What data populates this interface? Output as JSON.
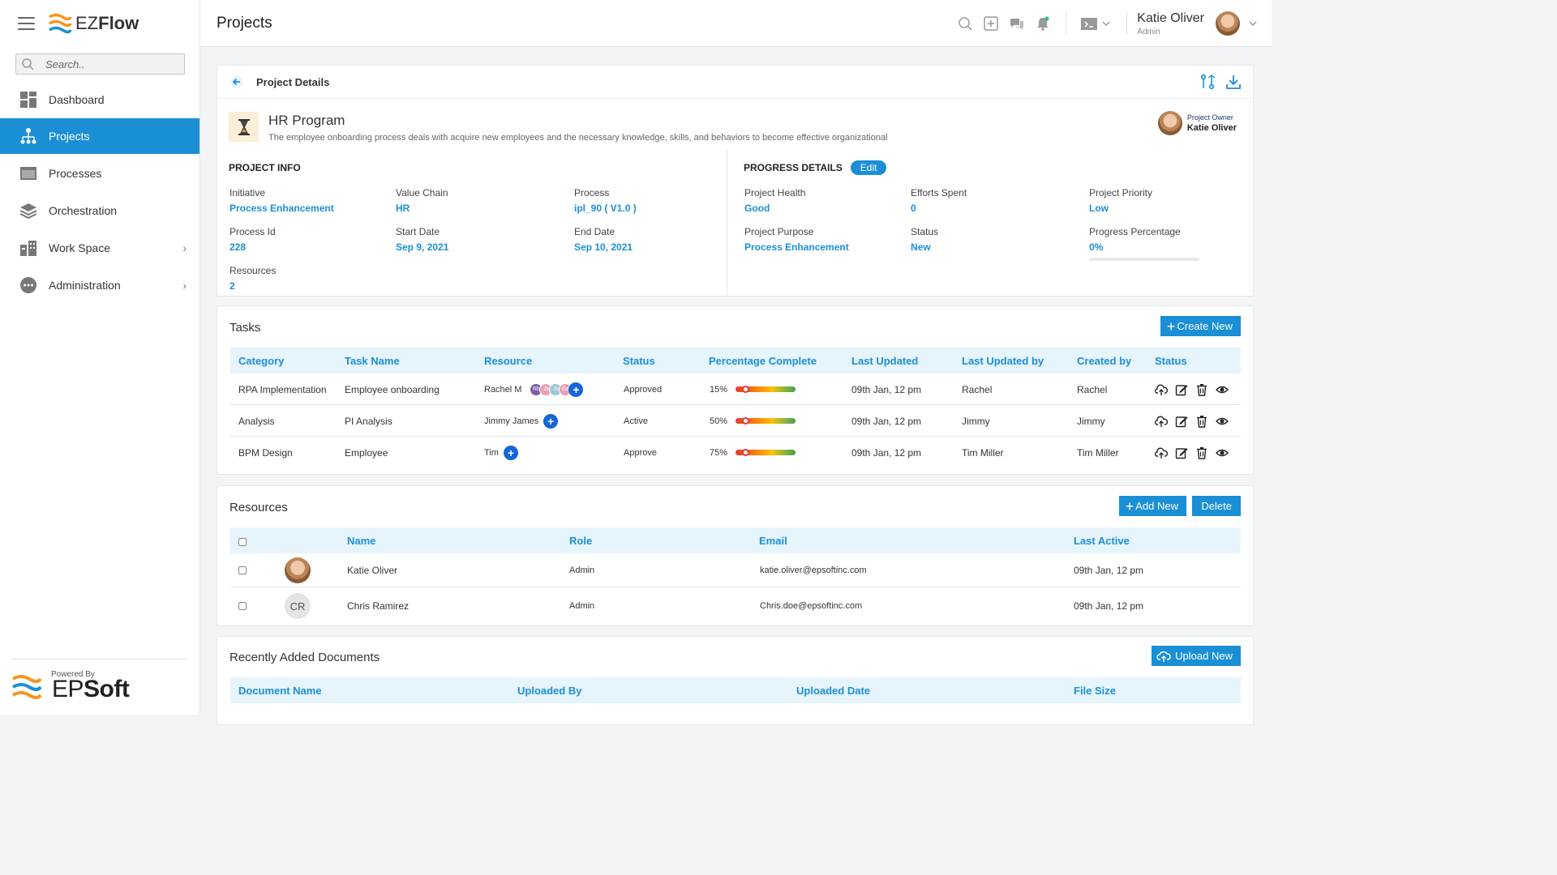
{
  "colors": {
    "accent": "#1a8fd6",
    "header_blue": "#1a8fd6",
    "table_head_bg": "#e6f4fc"
  },
  "sidebar": {
    "logo": {
      "prefix": "EZ",
      "suffix": "Flow"
    },
    "search_placeholder": "Search..",
    "items": [
      {
        "label": "Dashboard",
        "icon": "grid-icon"
      },
      {
        "label": "Projects",
        "icon": "org-chart-icon",
        "active": true
      },
      {
        "label": "Processes",
        "icon": "window-icon"
      },
      {
        "label": "Orchestration",
        "icon": "layers-icon"
      },
      {
        "label": "Work Space",
        "icon": "building-icon",
        "has_children": true
      },
      {
        "label": "Administration",
        "icon": "more-dots-icon",
        "has_children": true
      }
    ],
    "powered_by": {
      "label": "Powered By",
      "brand_prefix": "EP",
      "brand_suffix": "Soft"
    }
  },
  "header": {
    "title": "Projects",
    "user": {
      "name": "Katie Oliver",
      "role": "Admin"
    }
  },
  "project": {
    "breadcrumb": "Project Details",
    "title": "HR Program",
    "description": "The employee onboarding process deals with acquire new employees and the necessary knowledge, skills, and behaviors to become effective organizational",
    "owner": {
      "label": "Project Owner",
      "name": "Katie Oliver"
    },
    "info": {
      "title": "PROJECT INFO",
      "initiative": {
        "label": "Initiative",
        "value": "Process Enhancement"
      },
      "value_chain": {
        "label": "Value Chain",
        "value": "HR"
      },
      "process": {
        "label": "Process",
        "value": "ipl_90 ( V1.0 )"
      },
      "process_id": {
        "label": "Process Id",
        "value": "228"
      },
      "start_date": {
        "label": "Start Date",
        "value": "Sep 9, 2021"
      },
      "end_date": {
        "label": "End Date",
        "value": "Sep 10, 2021"
      },
      "resources": {
        "label": "Resources",
        "value": "2"
      }
    },
    "progress": {
      "title": "PROGRESS DETAILS",
      "edit_label": "Edit",
      "health": {
        "label": "Project Health",
        "value": "Good"
      },
      "efforts": {
        "label": "Efforts Spent",
        "value": "0"
      },
      "priority": {
        "label": "Project Priority",
        "value": "Low"
      },
      "purpose": {
        "label": "Project Purpose",
        "value": "Process Enhancement"
      },
      "status": {
        "label": "Status",
        "value": "New"
      },
      "percentage": {
        "label": "Progress Percentage",
        "value": "0%",
        "fraction": 0
      }
    }
  },
  "tasks": {
    "title": "Tasks",
    "create_label": "Create New",
    "columns": [
      "Category",
      "Task Name",
      "Resource",
      "Status",
      "Percentage Complete",
      "Last Updated",
      "Last Updated by",
      "Created by",
      "Status"
    ],
    "rows": [
      {
        "category": "RPA Implementation",
        "task": "Employee onboarding",
        "resource": "Rachel M",
        "avatars": [
          "Rb",
          "Js",
          "Js",
          "Gd"
        ],
        "status": "Approved",
        "pct": "15%",
        "updated": "09th Jan, 12 pm",
        "updated_by": "Rachel",
        "created_by": "Rachel"
      },
      {
        "category": "Analysis",
        "task": "PI Analysis",
        "resource": "Jimmy James",
        "avatars": [],
        "status": "Active",
        "pct": "50%",
        "updated": "09th Jan, 12 pm",
        "updated_by": "Jimmy",
        "created_by": "Jimmy"
      },
      {
        "category": "BPM Design",
        "task": "Employee",
        "resource": "Tim",
        "avatars": [],
        "status": "Approve",
        "pct": "75%",
        "updated": "09th Jan, 12 pm",
        "updated_by": "Tim Miller",
        "created_by": "Tim Miller"
      }
    ]
  },
  "resources": {
    "title": "Resources",
    "add_label": "Add New",
    "delete_label": "Delete",
    "columns": [
      "Name",
      "Role",
      "Email",
      "Last Active"
    ],
    "rows": [
      {
        "initials": "",
        "name": "Katie Oliver",
        "role": "Admin",
        "email": "katie.oliver@epsoftinc.com",
        "last_active": "09th Jan, 12 pm"
      },
      {
        "initials": "CR",
        "name": "Chris Ramirez",
        "role": "Admin",
        "email": "Chris.doe@epsoftinc.com",
        "last_active": "09th Jan, 12 pm"
      }
    ]
  },
  "documents": {
    "title": "Recently Added Documents",
    "upload_label": "Upload New",
    "columns": [
      "Document Name",
      "Uploaded By",
      "Uploaded Date",
      "File Size"
    ]
  }
}
